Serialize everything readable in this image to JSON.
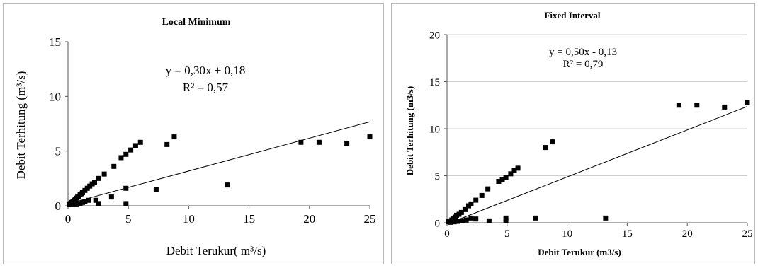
{
  "chart_data": [
    {
      "type": "scatter",
      "title": "Local Minimum",
      "xlabel": "Debit Terukur( m³/s)",
      "ylabel": "Debit Terhitung (m³/s)",
      "xlim": [
        0,
        25
      ],
      "ylim": [
        0,
        15
      ],
      "xticks": [
        "0",
        "5",
        "10",
        "15",
        "20",
        "25"
      ],
      "yticks": [
        "0",
        "5",
        "10",
        "15"
      ],
      "xtick_values": [
        0,
        5,
        10,
        15,
        20,
        25
      ],
      "ytick_values": [
        0,
        5,
        10,
        15
      ],
      "grid": false,
      "annotations": [
        "y = 0,30x + 0,18",
        "R² = 0,57"
      ],
      "trendline": {
        "slope": 0.3,
        "intercept": 0.18,
        "x_range": [
          0,
          25
        ]
      },
      "points": [
        [
          0.1,
          0.1
        ],
        [
          0.2,
          0.2
        ],
        [
          0.3,
          0.3
        ],
        [
          0.4,
          0.4
        ],
        [
          0.5,
          0.5
        ],
        [
          0.6,
          0.6
        ],
        [
          0.7,
          0.7
        ],
        [
          0.8,
          0.8
        ],
        [
          0.9,
          0.85
        ],
        [
          1.0,
          1.0
        ],
        [
          1.1,
          1.1
        ],
        [
          1.2,
          1.2
        ],
        [
          1.4,
          1.4
        ],
        [
          1.6,
          1.6
        ],
        [
          1.8,
          1.8
        ],
        [
          2.0,
          2.0
        ],
        [
          2.2,
          2.1
        ],
        [
          2.5,
          2.5
        ],
        [
          3.0,
          2.9
        ],
        [
          3.8,
          3.6
        ],
        [
          4.4,
          4.4
        ],
        [
          4.8,
          4.7
        ],
        [
          5.2,
          5.1
        ],
        [
          5.6,
          5.5
        ],
        [
          6.0,
          5.8
        ],
        [
          0.3,
          0.1
        ],
        [
          0.5,
          0.15
        ],
        [
          0.7,
          0.1
        ],
        [
          1.0,
          0.2
        ],
        [
          1.2,
          0.3
        ],
        [
          1.4,
          0.4
        ],
        [
          1.7,
          0.5
        ],
        [
          2.3,
          0.5
        ],
        [
          2.5,
          0.2
        ],
        [
          3.6,
          0.8
        ],
        [
          4.8,
          1.6
        ],
        [
          4.8,
          0.2
        ],
        [
          7.3,
          1.5
        ],
        [
          8.2,
          5.6
        ],
        [
          8.8,
          6.3
        ],
        [
          13.2,
          1.9
        ],
        [
          19.3,
          5.8
        ],
        [
          20.8,
          5.8
        ],
        [
          23.1,
          5.7
        ],
        [
          25.0,
          6.3
        ]
      ]
    },
    {
      "type": "scatter",
      "title": "Fixed Interval",
      "xlabel": "Debit Terukur (m3/s)",
      "ylabel": "Debit Terhitung (m3/s)",
      "xlim": [
        0,
        25
      ],
      "ylim": [
        0,
        20
      ],
      "xticks": [
        "0",
        "5",
        "10",
        "15",
        "20",
        "25"
      ],
      "yticks": [
        "0",
        "5",
        "10",
        "15",
        "20"
      ],
      "xtick_values": [
        0,
        5,
        10,
        15,
        20,
        25
      ],
      "ytick_values": [
        0,
        5,
        10,
        15,
        20
      ],
      "grid": true,
      "annotations": [
        "y = 0,50x - 0,13",
        "R² = 0,79"
      ],
      "trendline": {
        "slope": 0.5,
        "intercept": -0.13,
        "x_range": [
          0,
          25
        ]
      },
      "points": [
        [
          0.1,
          0.1
        ],
        [
          0.2,
          0.15
        ],
        [
          0.3,
          0.2
        ],
        [
          0.4,
          0.3
        ],
        [
          0.5,
          0.4
        ],
        [
          0.6,
          0.5
        ],
        [
          0.7,
          0.6
        ],
        [
          0.8,
          0.8
        ],
        [
          1.0,
          0.9
        ],
        [
          1.2,
          1.1
        ],
        [
          1.5,
          1.4
        ],
        [
          1.8,
          1.8
        ],
        [
          2.0,
          2.0
        ],
        [
          2.4,
          2.4
        ],
        [
          2.9,
          2.9
        ],
        [
          3.4,
          3.6
        ],
        [
          4.3,
          4.4
        ],
        [
          4.6,
          4.6
        ],
        [
          4.9,
          4.8
        ],
        [
          5.3,
          5.2
        ],
        [
          5.6,
          5.6
        ],
        [
          5.9,
          5.8
        ],
        [
          0.3,
          0.05
        ],
        [
          0.6,
          0.1
        ],
        [
          0.9,
          0.15
        ],
        [
          1.3,
          0.2
        ],
        [
          1.6,
          0.3
        ],
        [
          2.0,
          0.5
        ],
        [
          2.4,
          0.4
        ],
        [
          3.5,
          0.2
        ],
        [
          4.9,
          0.5
        ],
        [
          4.9,
          0.2
        ],
        [
          7.4,
          0.5
        ],
        [
          8.2,
          8.0
        ],
        [
          8.8,
          8.6
        ],
        [
          13.2,
          0.5
        ],
        [
          19.3,
          12.5
        ],
        [
          20.8,
          12.5
        ],
        [
          23.1,
          12.3
        ],
        [
          25.0,
          12.8
        ]
      ]
    }
  ]
}
